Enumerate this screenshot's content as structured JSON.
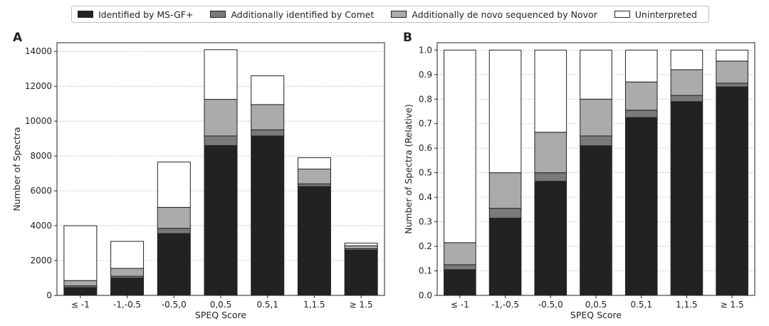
{
  "legend": [
    {
      "label": "Identified by MS-GF+",
      "color": "#222222"
    },
    {
      "label": "Additionally identified by Comet",
      "color": "#7a7a7a"
    },
    {
      "label": "Additionally de novo sequenced by Novor",
      "color": "#ababab"
    },
    {
      "label": "Uninterpreted",
      "color": "#ffffff"
    }
  ],
  "chart_data": [
    {
      "type": "bar",
      "stacked": true,
      "panel_label": "A",
      "categories": [
        "≤ -1",
        "-1,-0.5",
        "-0.5,0",
        "0,0.5",
        "0.5,1",
        "1,1.5",
        "≥ 1.5"
      ],
      "series": [
        {
          "name": "Identified by MS-GF+",
          "values": [
            450,
            1000,
            3550,
            8600,
            9150,
            6250,
            2600
          ]
        },
        {
          "name": "Additionally identified by Comet",
          "values": [
            100,
            100,
            300,
            550,
            350,
            150,
            80
          ]
        },
        {
          "name": "Additionally de novo sequenced by Novor",
          "values": [
            300,
            450,
            1200,
            2100,
            1450,
            850,
            170
          ]
        },
        {
          "name": "Uninterpreted",
          "values": [
            3150,
            1550,
            2600,
            2850,
            1650,
            650,
            150
          ]
        }
      ],
      "xlabel": "SPEQ Score",
      "ylabel": "Number of Spectra",
      "ylim": [
        0,
        14500
      ],
      "yticks": [
        0,
        2000,
        4000,
        6000,
        8000,
        10000,
        12000,
        14000
      ],
      "ytick_labels": [
        "0",
        "2000",
        "4000",
        "6000",
        "8000",
        "10000",
        "12000",
        "14000"
      ],
      "grid": "y-dotted"
    },
    {
      "type": "bar",
      "stacked": true,
      "panel_label": "B",
      "categories": [
        "≤ -1",
        "-1,-0.5",
        "-0.5,0",
        "0,0.5",
        "0.5,1",
        "1,1.5",
        "≥ 1.5"
      ],
      "series": [
        {
          "name": "Identified by MS-GF+",
          "values": [
            0.105,
            0.315,
            0.465,
            0.61,
            0.725,
            0.79,
            0.85
          ]
        },
        {
          "name": "Additionally identified by Comet",
          "values": [
            0.02,
            0.04,
            0.035,
            0.04,
            0.03,
            0.025,
            0.015
          ]
        },
        {
          "name": "Additionally de novo sequenced by Novor",
          "values": [
            0.09,
            0.145,
            0.165,
            0.15,
            0.115,
            0.105,
            0.09
          ]
        },
        {
          "name": "Uninterpreted",
          "values": [
            0.785,
            0.5,
            0.335,
            0.2,
            0.13,
            0.08,
            0.045
          ]
        }
      ],
      "xlabel": "SPEQ Score",
      "ylabel": "Number of Spectra (Relative)",
      "ylim": [
        0,
        1.03
      ],
      "yticks": [
        0,
        0.1,
        0.2,
        0.3,
        0.4,
        0.5,
        0.6,
        0.7,
        0.8,
        0.9,
        1.0
      ],
      "ytick_labels": [
        "0.0",
        "0.1",
        "0.2",
        "0.3",
        "0.4",
        "0.5",
        "0.6",
        "0.7",
        "0.8",
        "0.9",
        "1.0"
      ],
      "grid": "y-dotted"
    }
  ]
}
